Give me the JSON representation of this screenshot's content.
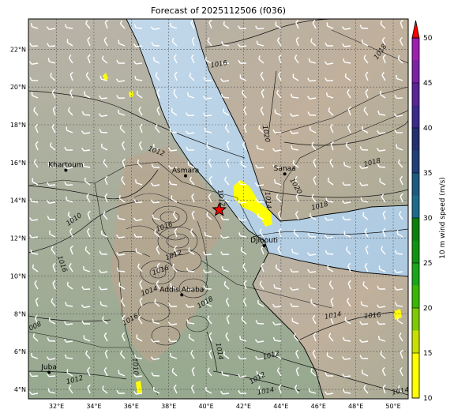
{
  "title": "Forecast of 2025112506 (f036)",
  "map": {
    "lat_ticks": [
      "22°N",
      "20°N",
      "18°N",
      "16°N",
      "14°N",
      "12°N",
      "10°N",
      "8°N",
      "6°N",
      "4°N"
    ],
    "lon_ticks": [
      "32°E",
      "34°E",
      "36°E",
      "38°E",
      "40°E",
      "42°E",
      "44°E",
      "46°E",
      "48°E",
      "50°E"
    ],
    "cities": [
      {
        "name": "Khartoum",
        "lon": 32.5,
        "lat": 15.6
      },
      {
        "name": "Asmara",
        "lon": 38.9,
        "lat": 15.3
      },
      {
        "name": "Sanaa",
        "lon": 44.2,
        "lat": 15.4
      },
      {
        "name": "Djibouti",
        "lon": 43.1,
        "lat": 11.6
      },
      {
        "name": "Addis Ababa",
        "lon": 38.7,
        "lat": 9.0
      },
      {
        "name": "Juba",
        "lon": 31.6,
        "lat": 4.9
      }
    ],
    "star": {
      "lon": 40.7,
      "lat": 13.5
    },
    "isobar_labels": [
      {
        "text": "1016",
        "lon": 40.7,
        "lat": 21.1,
        "rot": -10
      },
      {
        "text": "1018",
        "lon": 49.4,
        "lat": 21.8,
        "rot": -55
      },
      {
        "text": "1020",
        "lon": 43.1,
        "lat": 17.5,
        "rot": 80
      },
      {
        "text": "1012",
        "lon": 37.3,
        "lat": 16.5,
        "rot": 20
      },
      {
        "text": "1018",
        "lon": 48.9,
        "lat": 15.9,
        "rot": -15
      },
      {
        "text": "1020",
        "lon": 44.7,
        "lat": 14.7,
        "rot": 60
      },
      {
        "text": "1014",
        "lon": 43.2,
        "lat": 14.0,
        "rot": 85
      },
      {
        "text": "1012",
        "lon": 40.7,
        "lat": 14.1,
        "rot": 80
      },
      {
        "text": "1018",
        "lon": 46.1,
        "lat": 13.6,
        "rot": -15
      },
      {
        "text": "1010",
        "lon": 33.0,
        "lat": 12.9,
        "rot": -35
      },
      {
        "text": "1016",
        "lon": 32.2,
        "lat": 10.6,
        "rot": 70
      },
      {
        "text": "1016",
        "lon": 37.8,
        "lat": 12.5,
        "rot": -20
      },
      {
        "text": "1012",
        "lon": 38.3,
        "lat": 11.0,
        "rot": -20
      },
      {
        "text": "1016",
        "lon": 37.6,
        "lat": 10.2,
        "rot": -20
      },
      {
        "text": "1014",
        "lon": 37.0,
        "lat": 9.1,
        "rot": -20
      },
      {
        "text": "1018",
        "lon": 40.0,
        "lat": 8.5,
        "rot": -30
      },
      {
        "text": "1016",
        "lon": 36.0,
        "lat": 7.6,
        "rot": -30
      },
      {
        "text": "1014",
        "lon": 46.8,
        "lat": 7.8,
        "rot": -10
      },
      {
        "text": "1016",
        "lon": 48.9,
        "lat": 7.8,
        "rot": -5
      },
      {
        "text": "1008",
        "lon": 30.8,
        "lat": 7.2,
        "rot": -25
      },
      {
        "text": "1014",
        "lon": 40.6,
        "lat": 6.0,
        "rot": 80
      },
      {
        "text": "1012",
        "lon": 43.5,
        "lat": 5.7,
        "rot": -15
      },
      {
        "text": "1010",
        "lon": 36.1,
        "lat": 5.2,
        "rot": 85
      },
      {
        "text": "1012",
        "lon": 33.0,
        "lat": 4.4,
        "rot": -15
      },
      {
        "text": "1012",
        "lon": 42.8,
        "lat": 4.5,
        "rot": -30
      },
      {
        "text": "1014",
        "lon": 43.2,
        "lat": 3.8,
        "rot": -10
      },
      {
        "text": "1014",
        "lon": 50.4,
        "lat": 3.8,
        "rot": -10
      }
    ]
  },
  "colorbar": {
    "label": "10 m wind speed (m/s)",
    "ticks": [
      "10",
      "15",
      "20",
      "25",
      "30",
      "35",
      "40",
      "45",
      "50"
    ],
    "bins": [
      {
        "from": 10,
        "to": 12.5,
        "color": "#ffff00"
      },
      {
        "from": 12.5,
        "to": 15,
        "color": "#ffff00"
      },
      {
        "from": 15,
        "to": 17.5,
        "color": "#c8e000"
      },
      {
        "from": 17.5,
        "to": 20,
        "color": "#7fcb00"
      },
      {
        "from": 20,
        "to": 22.5,
        "color": "#3ab800"
      },
      {
        "from": 22.5,
        "to": 25,
        "color": "#1aa51a"
      },
      {
        "from": 25,
        "to": 27.5,
        "color": "#119211"
      },
      {
        "from": 27.5,
        "to": 30,
        "color": "#0a800a"
      },
      {
        "from": 30,
        "to": 32.5,
        "color": "#1d6b8a"
      },
      {
        "from": 32.5,
        "to": 35,
        "color": "#1d5a80"
      },
      {
        "from": 35,
        "to": 37.5,
        "color": "#1f3f7a"
      },
      {
        "from": 37.5,
        "to": 40,
        "color": "#22306f"
      },
      {
        "from": 40,
        "to": 42.5,
        "color": "#3a2a8a"
      },
      {
        "from": 42.5,
        "to": 45,
        "color": "#5a2596"
      },
      {
        "from": 45,
        "to": 47.5,
        "color": "#7c22a3"
      },
      {
        "from": 47.5,
        "to": 50,
        "color": "#9b20ae"
      }
    ],
    "extend_color": "#ff0000"
  }
}
